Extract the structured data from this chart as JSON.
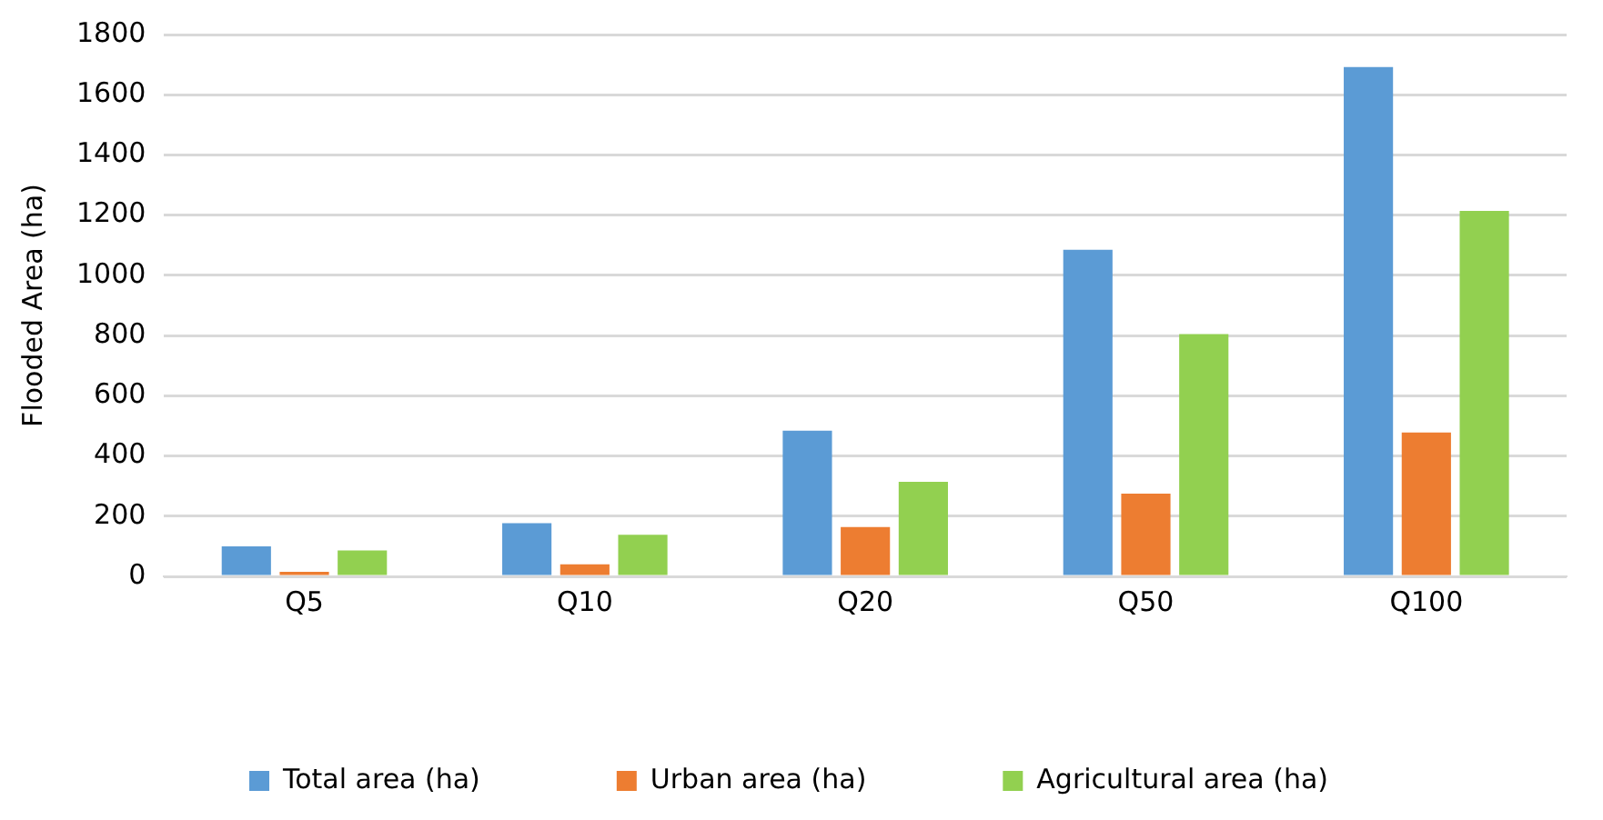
{
  "chart_data": {
    "type": "bar",
    "ylabel": "Flooded Area (ha)",
    "categories": [
      "Q5",
      "Q10",
      "Q20",
      "Q50",
      "Q100"
    ],
    "series": [
      {
        "name": "Total area (ha)",
        "color": "#5b9bd5",
        "values": [
          100,
          177,
          484,
          1085,
          1692
        ]
      },
      {
        "name": "Urban area (ha)",
        "color": "#ed7d31",
        "values": [
          15,
          40,
          164,
          275,
          478
        ]
      },
      {
        "name": "Agricultural area (ha)",
        "color": "#92d050",
        "values": [
          86,
          138,
          314,
          805,
          1214
        ]
      }
    ],
    "ylim": [
      0,
      1800
    ],
    "yticks": [
      0,
      200,
      400,
      600,
      800,
      1000,
      1200,
      1400,
      1600,
      1800
    ],
    "grid": "y",
    "legend": "bottom"
  }
}
